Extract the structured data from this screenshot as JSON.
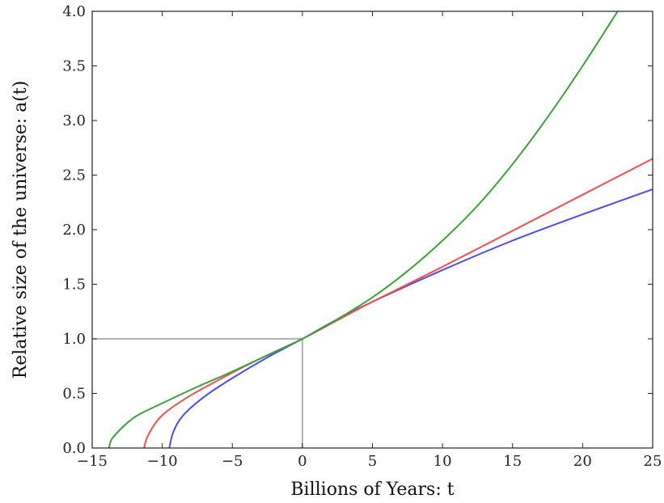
{
  "chart_data": {
    "type": "line",
    "xlabel": "Billions of Years: t",
    "ylabel": "Relative size of the universe: a(t)",
    "xlim": [
      -15,
      25
    ],
    "ylim": [
      0,
      4
    ],
    "xticks": [
      -15,
      -10,
      -5,
      0,
      5,
      10,
      15,
      20,
      25
    ],
    "xtick_labels": [
      "−15",
      "−10",
      "−5",
      "0",
      "5",
      "10",
      "15",
      "20",
      "25"
    ],
    "yticks": [
      0,
      0.5,
      1,
      1.5,
      2,
      2.5,
      3,
      3.5,
      4
    ],
    "ytick_labels": [
      "0.0",
      "0.5",
      "1.0",
      "1.5",
      "2.0",
      "2.5",
      "3.0",
      "3.5",
      "4.0"
    ],
    "grid": false,
    "reference_lines": [
      {
        "from": [
          -15,
          1
        ],
        "to": [
          0,
          1
        ],
        "color": "#999999"
      },
      {
        "from": [
          0,
          0
        ],
        "to": [
          0,
          1
        ],
        "color": "#999999"
      }
    ],
    "series": [
      {
        "color": "#4a4aff",
        "x": [
          -9.5,
          -9.2,
          -8.5,
          -7,
          -5,
          -2.5,
          0,
          2.5,
          5,
          10,
          15,
          20,
          25
        ],
        "y": [
          0,
          0.15,
          0.3,
          0.47,
          0.64,
          0.83,
          1.0,
          1.18,
          1.34,
          1.63,
          1.9,
          2.14,
          2.37
        ]
      },
      {
        "color": "#ff4a4a",
        "x": [
          -11.3,
          -11,
          -10,
          -8,
          -5,
          -2.5,
          0,
          2.5,
          5,
          10,
          15,
          20,
          25
        ],
        "y": [
          0,
          0.12,
          0.3,
          0.48,
          0.69,
          0.85,
          1.0,
          1.17,
          1.34,
          1.66,
          1.99,
          2.32,
          2.65
        ]
      },
      {
        "color": "#3aa33a",
        "x": [
          -13.8,
          -13.5,
          -12,
          -10,
          -7.5,
          -5,
          -2.5,
          0,
          2.5,
          5,
          7.5,
          10,
          12.5,
          15,
          17.5,
          20,
          22.5
        ],
        "y": [
          0,
          0.1,
          0.28,
          0.41,
          0.56,
          0.7,
          0.85,
          1.0,
          1.18,
          1.38,
          1.62,
          1.9,
          2.22,
          2.6,
          3.03,
          3.5,
          4.0
        ]
      }
    ]
  }
}
